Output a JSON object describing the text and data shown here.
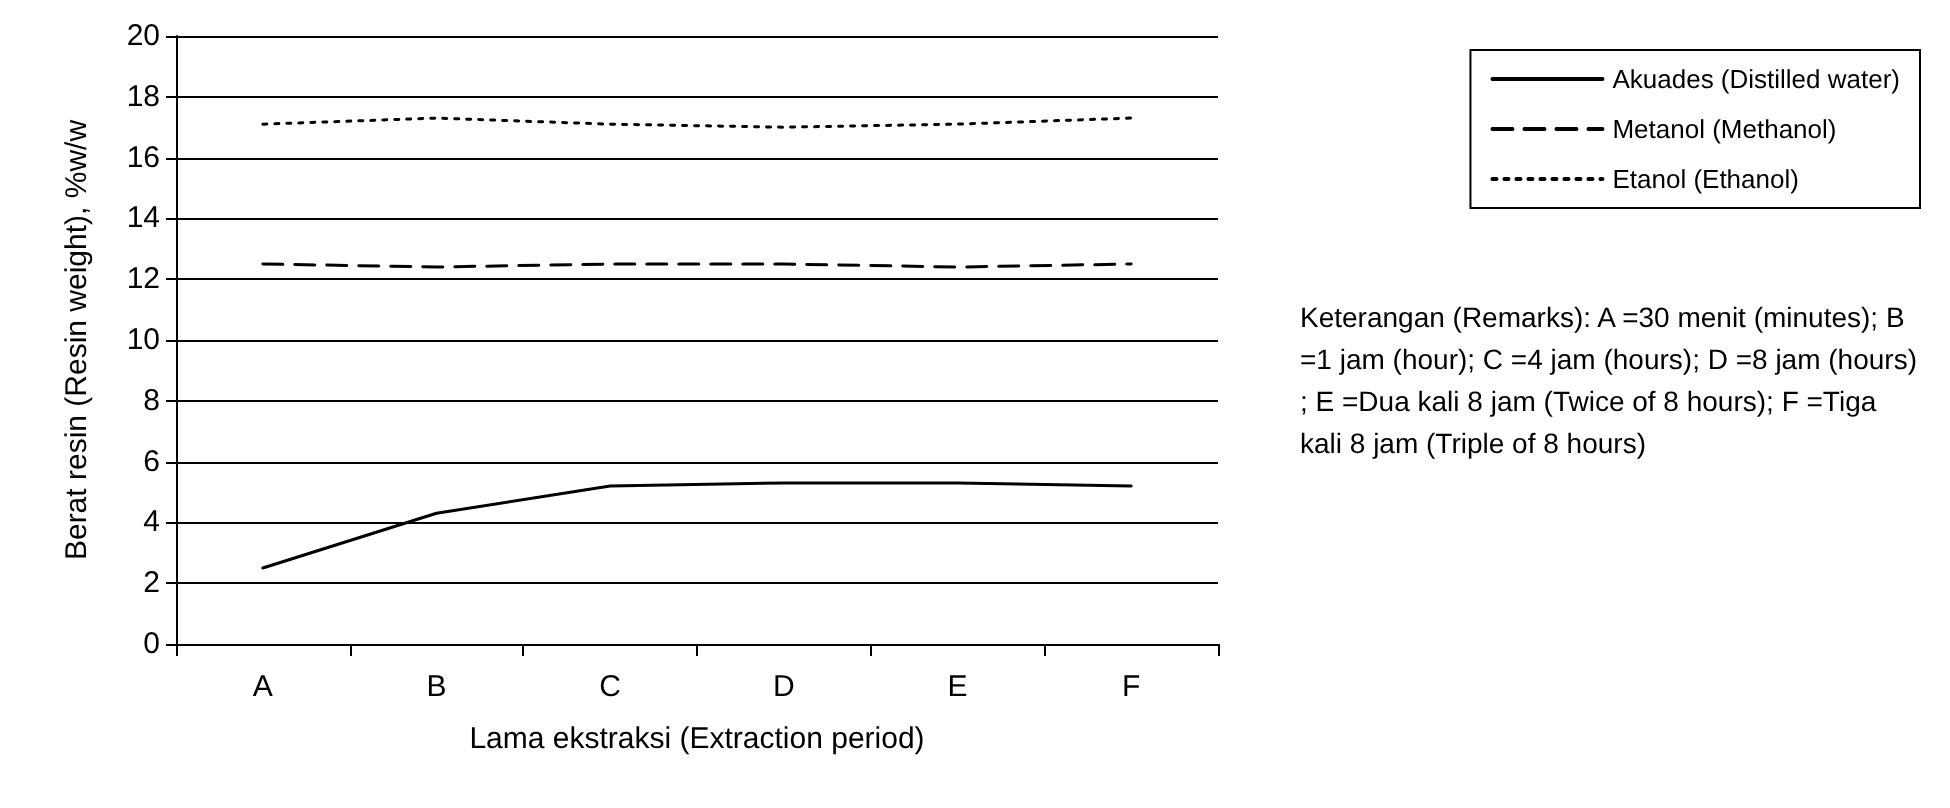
{
  "chart_data": {
    "type": "line",
    "xlabel": "Lama ekstraksi (Extraction period)",
    "ylabel": "Berat resin (Resin weight), %w/w",
    "categories": [
      "A",
      "B",
      "C",
      "D",
      "E",
      "F"
    ],
    "series": [
      {
        "name": "Akuades (Distilled water)",
        "color": "#000000",
        "line_style": "solid",
        "values": [
          2.5,
          4.3,
          5.2,
          5.3,
          5.3,
          5.2
        ]
      },
      {
        "name": "Metanol (Methanol)",
        "color": "#000000",
        "line_style": "dashed",
        "values": [
          12.5,
          12.4,
          12.5,
          12.5,
          12.4,
          12.5
        ]
      },
      {
        "name": "Etanol (Ethanol)",
        "color": "#000000",
        "line_style": "dotted",
        "values": [
          17.1,
          17.3,
          17.1,
          17.0,
          17.1,
          17.3
        ]
      }
    ],
    "ylim": [
      0,
      20
    ],
    "yticks": [
      0,
      2,
      4,
      6,
      8,
      10,
      12,
      14,
      16,
      18,
      20
    ],
    "grid": "y",
    "legend": "right",
    "marker": "none",
    "annotations": [
      "Keterangan (Remarks): A =30 menit (minutes); B =1 jam (hour); C =4 jam (hours); D =8 jam (hours); E =Dua kali 8 jam (Twice of 8 hours); F =Tiga kali 8 jam (Triple of 8 hours)"
    ]
  }
}
